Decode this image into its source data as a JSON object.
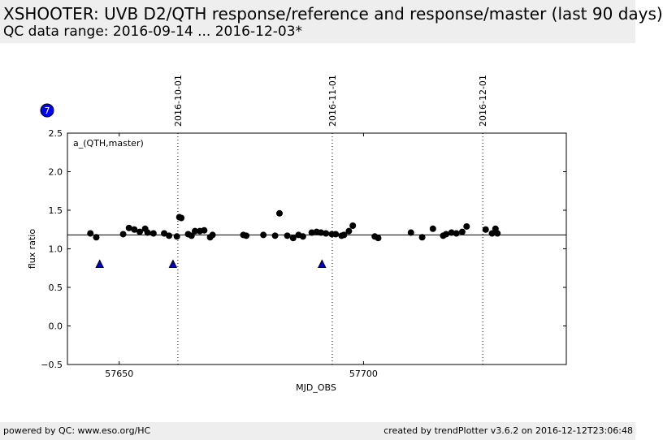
{
  "header": {
    "title": "XSHOOTER: UVB D2/QTH response/reference and response/master (last 90 days)",
    "subtitle": "QC data range: 2016-09-14 ... 2016-12-03*"
  },
  "badge": {
    "label": "7",
    "color": "#0000ff"
  },
  "footer": {
    "left": "powered by QC: www.eso.org/HC",
    "right": "created by trendPlotter v3.6.2 on 2016-12-12T23:06:48"
  },
  "chart_data": {
    "type": "scatter",
    "title": "",
    "panel_label": "a_(QTH,master)",
    "xlabel": "MJD_OBS",
    "ylabel": "flux ratio",
    "xlim": [
      57639.4,
      57741.5
    ],
    "ylim": [
      -0.5,
      2.5
    ],
    "x_ticks": [
      57650,
      57700
    ],
    "x_tick_labels": [
      "57650",
      "57700"
    ],
    "y_ticks": [
      -0.5,
      0.0,
      0.5,
      1.0,
      1.5,
      2.0,
      2.5
    ],
    "y_tick_labels": [
      "−0.5",
      "0.0",
      "0.5",
      "1.0",
      "1.5",
      "2.0",
      "2.5"
    ],
    "date_markers": [
      {
        "x": 57662,
        "label": "2016-10-01"
      },
      {
        "x": 57693.6,
        "label": "2016-11-01"
      },
      {
        "x": 57724.4,
        "label": "2016-12-01"
      }
    ],
    "reference_line": 1.18,
    "grid": false,
    "series": [
      {
        "marker": "circle",
        "color": "#000000",
        "x": [
          57644.1,
          57645.3,
          57650.8,
          57652.0,
          57653.1,
          57654.2,
          57655.3,
          57655.8,
          57657.0,
          57659.2,
          57660.2,
          57661.8,
          57662.3,
          57662.7,
          57664.1,
          57664.8,
          57665.5,
          57666.5,
          57667.4,
          57668.6,
          57669.1,
          57675.4,
          57676.0,
          57679.5,
          57681.9,
          57682.8,
          57684.4,
          57685.6,
          57686.7,
          57687.6,
          57689.4,
          57690.4,
          57691.3,
          57692.3,
          57693.5,
          57694.3,
          57695.5,
          57696.0,
          57697.0,
          57697.8,
          57702.3,
          57703.0,
          57709.7,
          57712.0,
          57714.2,
          57716.3,
          57716.9,
          57718.0,
          57719.0,
          57720.2,
          57721.1,
          57725.0,
          57726.3,
          57727.0,
          57727.4
        ],
        "y": [
          1.2,
          1.15,
          1.19,
          1.27,
          1.25,
          1.22,
          1.26,
          1.21,
          1.2,
          1.2,
          1.17,
          1.16,
          1.41,
          1.4,
          1.19,
          1.17,
          1.23,
          1.23,
          1.24,
          1.15,
          1.18,
          1.18,
          1.17,
          1.18,
          1.17,
          1.46,
          1.17,
          1.14,
          1.18,
          1.16,
          1.21,
          1.22,
          1.21,
          1.2,
          1.19,
          1.19,
          1.17,
          1.18,
          1.23,
          1.3,
          1.16,
          1.14,
          1.21,
          1.15,
          1.26,
          1.17,
          1.19,
          1.21,
          1.2,
          1.22,
          1.29,
          1.25,
          1.2,
          1.26,
          1.2
        ]
      },
      {
        "marker": "triangle",
        "color": "#0000cc",
        "x": [
          57646.0,
          57661.0,
          57691.5
        ],
        "y": [
          0.8,
          0.8,
          0.8
        ]
      }
    ]
  }
}
